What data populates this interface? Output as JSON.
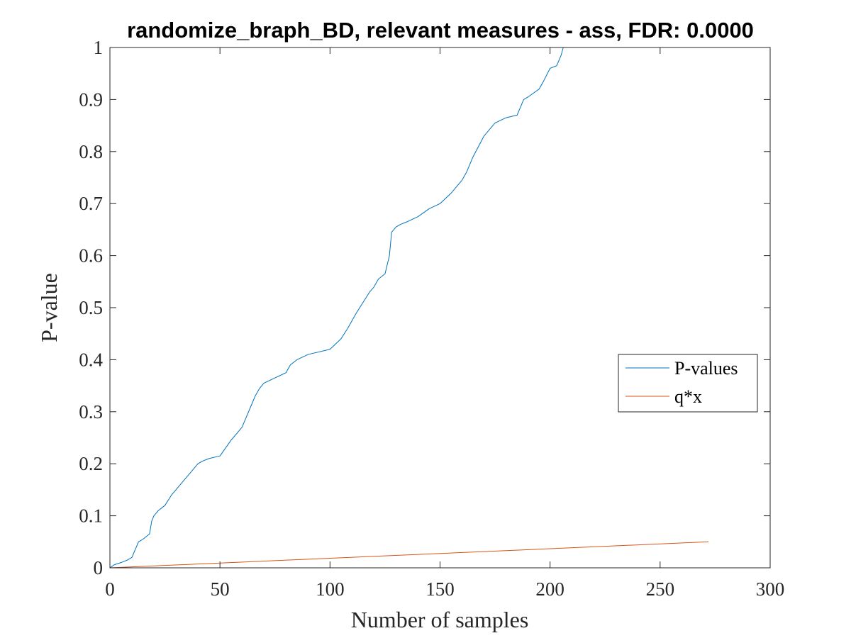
{
  "chart_data": {
    "type": "line",
    "title": "randomize_braph_BD, relevant measures - ass, FDR: 0.0000",
    "xlabel": "Number of samples",
    "ylabel": "P-value",
    "xlim": [
      0,
      300
    ],
    "ylim": [
      0,
      1
    ],
    "xticks": [
      0,
      50,
      100,
      150,
      200,
      250,
      300
    ],
    "yticks": [
      0,
      0.1,
      0.2,
      0.3,
      0.4,
      0.5,
      0.6,
      0.7,
      0.8,
      0.9,
      1
    ],
    "xtick_labels": [
      "0",
      "50",
      "100",
      "150",
      "200",
      "250",
      "300"
    ],
    "ytick_labels": [
      "0",
      "0.1",
      "0.2",
      "0.3",
      "0.4",
      "0.5",
      "0.6",
      "0.7",
      "0.8",
      "0.9",
      "1"
    ],
    "grid": false,
    "box": true,
    "legend_position": "east",
    "series": [
      {
        "name": "P-values",
        "color": "#0072BD",
        "x": [
          0,
          1,
          2,
          5,
          8,
          10,
          11,
          12,
          13,
          15,
          18,
          19,
          20,
          21,
          22,
          25,
          28,
          30,
          32,
          35,
          40,
          42,
          45,
          50,
          55,
          56,
          58,
          60,
          62,
          65,
          66,
          68,
          70,
          75,
          80,
          82,
          85,
          90,
          100,
          105,
          108,
          110,
          112,
          115,
          118,
          120,
          122,
          125,
          127,
          128,
          130,
          132,
          135,
          140,
          145,
          150,
          155,
          160,
          162,
          165,
          170,
          172,
          175,
          180,
          185,
          188,
          190,
          195,
          197,
          200,
          203,
          205,
          206,
          207,
          210,
          240,
          272
        ],
        "y": [
          0,
          0.003,
          0.006,
          0.01,
          0.015,
          0.02,
          0.03,
          0.04,
          0.05,
          0.055,
          0.065,
          0.09,
          0.1,
          0.105,
          0.11,
          0.12,
          0.14,
          0.15,
          0.16,
          0.175,
          0.2,
          0.205,
          0.21,
          0.215,
          0.245,
          0.25,
          0.26,
          0.27,
          0.29,
          0.32,
          0.33,
          0.345,
          0.355,
          0.365,
          0.375,
          0.39,
          0.4,
          0.41,
          0.42,
          0.44,
          0.46,
          0.475,
          0.49,
          0.51,
          0.53,
          0.54,
          0.555,
          0.565,
          0.6,
          0.645,
          0.655,
          0.66,
          0.665,
          0.675,
          0.69,
          0.7,
          0.72,
          0.745,
          0.76,
          0.79,
          0.83,
          0.84,
          0.855,
          0.865,
          0.87,
          0.9,
          0.905,
          0.92,
          0.935,
          0.96,
          0.965,
          0.985,
          1.0,
          1.0,
          1.0,
          1.0,
          1.0
        ]
      },
      {
        "name": "q*x",
        "color": "#D95319",
        "x": [
          0,
          272
        ],
        "y": [
          0,
          0.05
        ]
      }
    ]
  }
}
